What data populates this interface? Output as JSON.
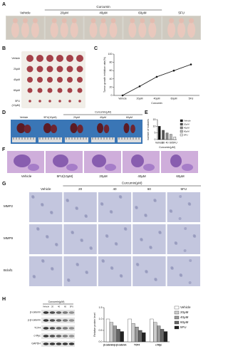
{
  "panel_labels": [
    "A",
    "B",
    "C",
    "D",
    "E",
    "F",
    "G",
    "H"
  ],
  "panel_a": {
    "group": "Curcumin",
    "labels": [
      "Vehicle",
      "20μM",
      "40μM",
      "60μM",
      "5FU"
    ]
  },
  "panel_b": {
    "rows": [
      "Vehicle",
      "20μM",
      "40μM",
      "60μM",
      "5FU",
      "(10μM)"
    ]
  },
  "panel_d": {
    "group": "Curcumin(μM)",
    "labels": [
      "Vehicle",
      "5FU(10μM)",
      "20μM",
      "40μM",
      "60μM"
    ]
  },
  "panel_f": {
    "labels": [
      "Vehicle",
      "5FU(10μM)",
      "20μM",
      "40μM",
      "60μM"
    ]
  },
  "panel_g": {
    "group": "Curcumin(μM)",
    "columns": [
      "Vehicle",
      "20",
      "40",
      "60",
      "5FU"
    ],
    "rows": [
      "MMP2",
      "MMP9",
      "Bclaf1"
    ]
  },
  "panel_h": {
    "group": "Curcumin(μM)",
    "lanes": [
      "Vehicle",
      "20",
      "40",
      "60",
      "5FU"
    ],
    "rows": [
      "β-catenin",
      "p-β-catenin",
      "TCF4",
      "c-Myc",
      "GAPDH"
    ]
  },
  "chart_data": [
    {
      "type": "line",
      "y_label": "Tumor growth inhibition rate(%)",
      "x_label": "Curcumin",
      "categories": [
        "Vehicle",
        "20μM",
        "40μM",
        "60μM",
        "5FU"
      ],
      "values": [
        0,
        22,
        45,
        60,
        75
      ],
      "color": "#111111",
      "ylim": [
        0,
        100
      ],
      "yticks": [
        0,
        20,
        40,
        60,
        80,
        100
      ]
    },
    {
      "type": "bar",
      "y_label": "number of nodules",
      "x_label": "Curcumin(μM)",
      "categories": [
        "Vehicle",
        "20",
        "40",
        "60",
        "5FU"
      ],
      "values": [
        10,
        7,
        5,
        4,
        2
      ],
      "colors": [
        "#111111",
        "#555555",
        "#888888",
        "#bbbbbb",
        "#eeeeee"
      ],
      "legend": [
        "Vehicle",
        "20μM",
        "40μM",
        "60μM",
        "5FU"
      ],
      "ylim": [
        0,
        15
      ],
      "yticks": [
        0,
        5,
        10,
        15
      ]
    },
    {
      "type": "bar",
      "y_label": "Relative protein level",
      "categories": [
        "β-catenin/p-β-catenin",
        "TCF4",
        "c-Myc"
      ],
      "series": [
        {
          "name": "Vehicle",
          "color": "#ffffff",
          "values": [
            1.0,
            1.0,
            1.0
          ]
        },
        {
          "name": "20μM",
          "color": "#cccccc",
          "values": [
            0.85,
            0.8,
            0.85
          ]
        },
        {
          "name": "40μM",
          "color": "#999999",
          "values": [
            0.7,
            0.65,
            0.7
          ]
        },
        {
          "name": "60μM",
          "color": "#666666",
          "values": [
            0.55,
            0.5,
            0.55
          ]
        },
        {
          "name": "5FU",
          "color": "#222222",
          "values": [
            0.45,
            0.4,
            0.45
          ]
        }
      ],
      "ylim": [
        0,
        1.5
      ],
      "yticks": [
        {
          "value": 0,
          "label": "0.0"
        },
        {
          "value": 0.5,
          "label": "0.5"
        },
        {
          "value": 1,
          "label": "1.0"
        },
        {
          "value": 1.5,
          "label": "1.5"
        }
      ]
    }
  ]
}
